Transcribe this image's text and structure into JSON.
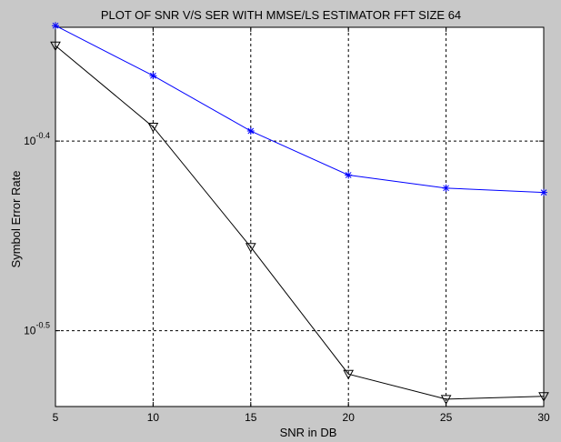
{
  "chart_data": {
    "type": "line",
    "title": "PLOT OF SNR V/S SER WITH MMSE/LS ESTIMATOR FFT SIZE 64",
    "xlabel": "SNR in DB",
    "ylabel": "Symbol Error Rate",
    "xlim": [
      5,
      30
    ],
    "ylim_log10": [
      -0.54,
      -0.34
    ],
    "yscale": "log",
    "grid": true,
    "x_ticks": [
      "5",
      "10",
      "15",
      "20",
      "25",
      "30"
    ],
    "y_ticks": [
      {
        "log10": -0.4,
        "base": "10",
        "exp": "-0.4"
      },
      {
        "log10": -0.5,
        "base": "10",
        "exp": "-0.5"
      }
    ],
    "x": [
      5,
      10,
      15,
      20,
      25,
      30
    ],
    "series": [
      {
        "color": "#0000ff",
        "marker": "asterisk",
        "values": [
          0.458,
          0.431,
          0.403,
          0.382,
          0.376,
          0.374
        ]
      },
      {
        "color": "#000000",
        "marker": "triangle-down",
        "values": [
          0.447,
          0.405,
          0.35,
          0.3,
          0.291,
          0.292
        ]
      }
    ]
  }
}
